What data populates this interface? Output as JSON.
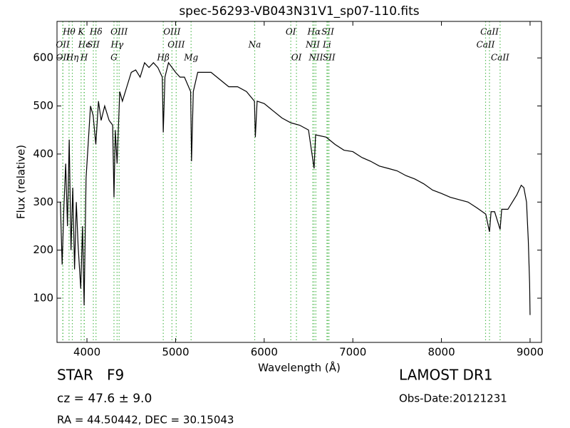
{
  "chart_data": {
    "type": "line",
    "title": "spec-56293-VB043N31V1_sp07-110.fits",
    "x_label": "Wavelength (Å)",
    "y_label": "Flux (relative)",
    "xlim": [
      3662,
      9129
    ],
    "ylim": [
      8,
      676
    ],
    "xticks": [
      4000,
      5000,
      6000,
      7000,
      8000,
      9000
    ],
    "yticks": [
      100,
      200,
      300,
      400,
      500,
      600
    ],
    "color": "#000000",
    "line_color": "#55bb55",
    "x": [
      3700,
      3720,
      3740,
      3760,
      3780,
      3800,
      3820,
      3840,
      3860,
      3880,
      3900,
      3930,
      3950,
      3968,
      3990,
      4010,
      4040,
      4070,
      4100,
      4130,
      4160,
      4200,
      4250,
      4290,
      4305,
      4320,
      4340,
      4370,
      4400,
      4450,
      4500,
      4550,
      4600,
      4650,
      4700,
      4750,
      4800,
      4850,
      4861,
      4880,
      4920,
      5000,
      5050,
      5100,
      5170,
      5180,
      5200,
      5250,
      5300,
      5400,
      5500,
      5600,
      5700,
      5800,
      5890,
      5900,
      5920,
      6000,
      6100,
      6200,
      6300,
      6400,
      6500,
      6563,
      6580,
      6700,
      6800,
      6900,
      7000,
      7100,
      7200,
      7300,
      7400,
      7500,
      7600,
      7700,
      7800,
      7900,
      8000,
      8100,
      8200,
      8300,
      8400,
      8500,
      8542,
      8560,
      8600,
      8662,
      8680,
      8750,
      8800,
      8850,
      8900,
      8930,
      8960,
      8980,
      8995,
      9000
    ],
    "values": [
      300,
      170,
      290,
      380,
      250,
      430,
      200,
      330,
      160,
      300,
      210,
      120,
      250,
      85,
      350,
      410,
      500,
      480,
      420,
      510,
      470,
      500,
      470,
      460,
      310,
      450,
      380,
      530,
      510,
      540,
      570,
      575,
      560,
      590,
      580,
      590,
      580,
      560,
      445,
      560,
      590,
      570,
      560,
      560,
      530,
      385,
      530,
      570,
      570,
      570,
      555,
      540,
      540,
      530,
      510,
      435,
      510,
      505,
      490,
      475,
      465,
      460,
      450,
      370,
      440,
      435,
      420,
      408,
      405,
      393,
      385,
      375,
      370,
      365,
      355,
      348,
      338,
      325,
      318,
      310,
      305,
      300,
      288,
      275,
      238,
      280,
      280,
      243,
      285,
      285,
      300,
      315,
      335,
      330,
      300,
      220,
      130,
      65
    ],
    "spectral_lines": {
      "top": [
        {
          "label": "Hθ",
          "wavelength": 3798
        },
        {
          "label": "K",
          "wavelength": 3934
        },
        {
          "label": "Hδ",
          "wavelength": 4102
        },
        {
          "label": "OIII",
          "wavelength": 4363
        },
        {
          "label": "OIII",
          "wavelength": 4959
        },
        {
          "label": "OI",
          "wavelength": 6300
        },
        {
          "label": "Hα",
          "wavelength": 6563
        },
        {
          "label": "SII",
          "wavelength": 6717
        },
        {
          "label": "CaII",
          "wavelength": 8542
        }
      ],
      "middle": [
        {
          "label": "OII",
          "wavelength": 3727
        },
        {
          "label": "Hϵ",
          "wavelength": 3970
        },
        {
          "label": "SII",
          "wavelength": 4072
        },
        {
          "label": "Hγ",
          "wavelength": 4340
        },
        {
          "label": "OIII",
          "wavelength": 5007
        },
        {
          "label": "Na",
          "wavelength": 5893
        },
        {
          "label": "NII",
          "wavelength": 6548
        },
        {
          "label": "Li",
          "wavelength": 6708
        },
        {
          "label": "CaII",
          "wavelength": 8498
        }
      ],
      "bottom": [
        {
          "label": "OII",
          "wavelength": 3729
        },
        {
          "label": "Hη",
          "wavelength": 3835
        },
        {
          "label": "H",
          "wavelength": 3968
        },
        {
          "label": "G",
          "wavelength": 4305
        },
        {
          "label": "Hβ",
          "wavelength": 4861
        },
        {
          "label": "Mg",
          "wavelength": 5175
        },
        {
          "label": "OI",
          "wavelength": 6364
        },
        {
          "label": "NII",
          "wavelength": 6583
        },
        {
          "label": "SII",
          "wavelength": 6731
        },
        {
          "label": "CaII",
          "wavelength": 8662
        }
      ]
    },
    "info": {
      "class": "STAR   F9",
      "cz": "cz = 47.6 ± 9.0",
      "coords": "RA = 44.50442, DEC = 30.15043",
      "survey": "LAMOST DR1",
      "obs_date": "Obs-Date:20121231"
    }
  }
}
